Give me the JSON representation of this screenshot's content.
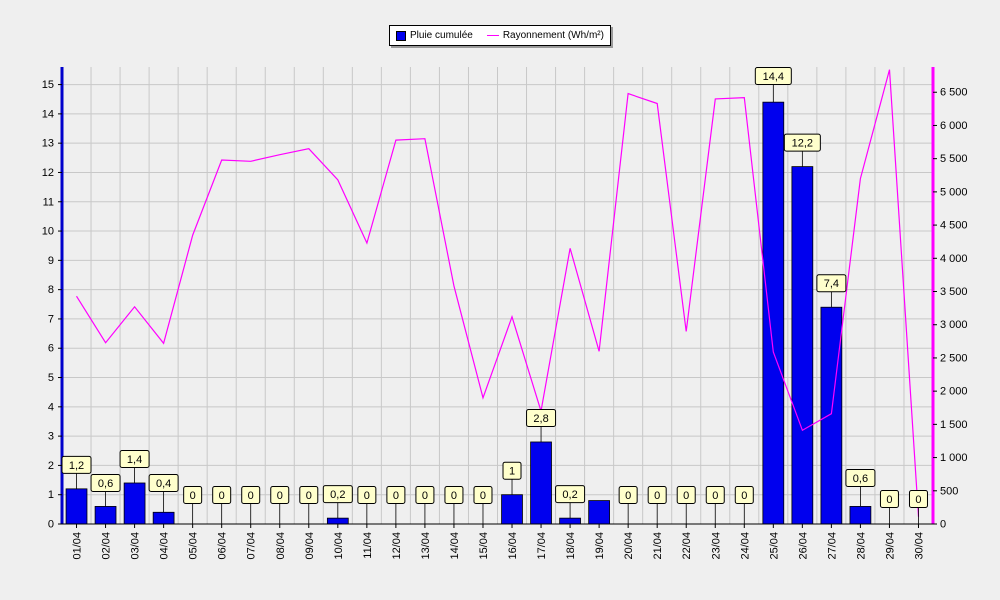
{
  "colors": {
    "background": "#efefef",
    "plot_background": "#efefef",
    "grid": "#c8c8c8",
    "bar_fill": "#0000ee",
    "line": "#ff00ff",
    "left_axis": "#0000cc",
    "right_axis": "#ff00ff",
    "label_box": "#ffffcc"
  },
  "legend": {
    "items": [
      {
        "label": "Pluie cumulée",
        "kind": "bar"
      },
      {
        "label": "Rayonnement (Wh/m²)",
        "kind": "line"
      }
    ]
  },
  "chart_data": {
    "type": "bar+line",
    "categories": [
      "01/04",
      "02/04",
      "03/04",
      "04/04",
      "05/04",
      "06/04",
      "07/04",
      "08/04",
      "09/04",
      "10/04",
      "11/04",
      "12/04",
      "13/04",
      "14/04",
      "15/04",
      "16/04",
      "17/04",
      "18/04",
      "19/04",
      "20/04",
      "21/04",
      "22/04",
      "23/04",
      "24/04",
      "25/04",
      "26/04",
      "27/04",
      "28/04",
      "29/04",
      "30/04"
    ],
    "series": [
      {
        "name": "Pluie cumulée",
        "type": "bar",
        "axis": "left",
        "values": [
          1.2,
          0.6,
          1.4,
          0.4,
          0,
          0,
          0,
          0,
          0,
          0.2,
          0,
          0,
          0,
          0,
          0,
          1,
          2.8,
          0.2,
          0.8,
          0,
          0,
          0,
          0,
          0,
          14.4,
          12.2,
          7.4,
          0.6,
          0,
          0
        ],
        "labels": [
          "1,2",
          "0,6",
          "1,4",
          "0,4",
          "0",
          "0",
          "0",
          "0",
          "0",
          "0,2",
          "0",
          "0",
          "0",
          "0",
          "0",
          "1",
          "2,8",
          "0,2",
          "",
          "0",
          "0",
          "0",
          "0",
          "0",
          "14,4",
          "12,2",
          "7,4",
          "0,6",
          "0",
          "0"
        ]
      },
      {
        "name": "Rayonnement (Wh/m²)",
        "type": "line",
        "axis": "right",
        "values": [
          3430,
          2730,
          3270,
          2720,
          4350,
          5480,
          5460,
          5560,
          5650,
          5180,
          4230,
          5780,
          5800,
          3580,
          1900,
          3120,
          1700,
          4150,
          2600,
          6480,
          6330,
          2900,
          6400,
          6420,
          2590,
          1410,
          1660,
          5200,
          6840,
          110
        ]
      }
    ],
    "left_axis": {
      "ylim": [
        0,
        15.6
      ],
      "ticks": [
        0,
        1,
        2,
        3,
        4,
        5,
        6,
        7,
        8,
        9,
        10,
        11,
        12,
        13,
        14,
        15
      ]
    },
    "right_axis": {
      "ylim": [
        0,
        6880
      ],
      "ticks": [
        0,
        500,
        1000,
        1500,
        2000,
        2500,
        3000,
        3500,
        4000,
        4500,
        5000,
        5500,
        6000,
        6500
      ],
      "tick_labels": [
        "0",
        "500",
        "1 000",
        "1 500",
        "2 000",
        "2 500",
        "3 000",
        "3 500",
        "4 000",
        "4 500",
        "5 000",
        "5 500",
        "6 000",
        "6 500"
      ]
    },
    "grid": true,
    "legend_position": "top-center"
  }
}
